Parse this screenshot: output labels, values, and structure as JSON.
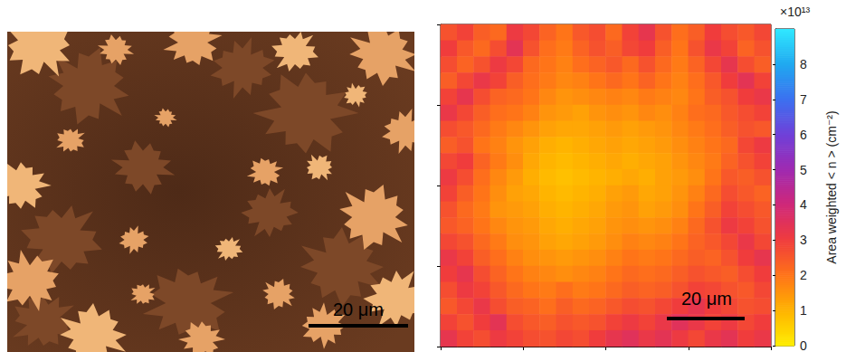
{
  "image": {
    "type": "micrograph",
    "scale_bar": "20 μm"
  },
  "chart_data": {
    "type": "heatmap",
    "tick_labels": false,
    "scale_bar": "20 μm",
    "colorbar": {
      "range": [
        0,
        9
      ],
      "ticks": [
        0,
        1,
        2,
        3,
        4,
        5,
        6,
        7,
        8
      ],
      "multiplier": "×10¹³",
      "title": "Area weighted < n > (cm⁻²)"
    },
    "cells": [
      [
        2.6,
        2.9,
        2.4,
        2.2,
        3.1,
        2.8,
        2.3,
        2.0,
        2.5,
        2.7,
        2.2,
        2.9,
        3.3,
        2.6,
        2.1,
        2.4,
        3.0,
        2.7,
        2.5,
        2.8
      ],
      [
        3.0,
        2.5,
        2.2,
        2.7,
        3.4,
        2.6,
        2.1,
        1.9,
        2.3,
        2.6,
        2.4,
        2.8,
        3.0,
        2.4,
        2.0,
        2.6,
        3.2,
        2.9,
        2.3,
        2.6
      ],
      [
        2.7,
        2.3,
        2.6,
        3.1,
        2.8,
        2.2,
        2.0,
        1.8,
        2.1,
        2.3,
        2.5,
        2.2,
        2.6,
        2.2,
        1.9,
        2.3,
        2.8,
        3.3,
        2.7,
        2.4
      ],
      [
        2.4,
        2.8,
        3.2,
        2.9,
        2.4,
        2.1,
        1.9,
        1.7,
        1.8,
        2.0,
        2.2,
        2.0,
        2.3,
        2.0,
        1.8,
        2.1,
        2.5,
        3.0,
        3.4,
        2.9
      ],
      [
        2.9,
        3.3,
        2.7,
        2.3,
        2.2,
        2.0,
        1.7,
        1.5,
        1.6,
        1.7,
        1.8,
        1.7,
        1.9,
        1.8,
        1.7,
        2.0,
        2.4,
        2.6,
        3.0,
        3.2
      ],
      [
        3.2,
        2.8,
        2.4,
        2.1,
        2.0,
        1.8,
        1.5,
        1.4,
        1.3,
        1.5,
        1.6,
        1.5,
        1.7,
        1.6,
        1.8,
        2.1,
        2.2,
        2.5,
        2.7,
        2.9
      ],
      [
        2.7,
        2.5,
        2.2,
        1.9,
        1.7,
        1.5,
        1.3,
        1.2,
        1.2,
        1.3,
        1.4,
        1.3,
        1.4,
        1.5,
        1.7,
        1.9,
        2.1,
        2.4,
        2.6,
        2.5
      ],
      [
        2.4,
        2.6,
        2.0,
        1.8,
        1.5,
        1.3,
        1.1,
        1.0,
        1.1,
        1.2,
        1.3,
        1.2,
        1.3,
        1.4,
        1.6,
        1.8,
        2.0,
        2.2,
        2.8,
        3.1
      ],
      [
        2.8,
        3.0,
        2.3,
        1.9,
        1.6,
        1.2,
        1.0,
        0.9,
        1.0,
        1.1,
        1.2,
        1.1,
        1.2,
        1.3,
        1.5,
        1.7,
        1.9,
        2.3,
        2.6,
        2.9
      ],
      [
        3.1,
        2.7,
        2.1,
        1.7,
        1.4,
        1.1,
        0.9,
        0.8,
        0.9,
        1.0,
        1.1,
        1.2,
        1.1,
        1.3,
        1.4,
        1.6,
        2.0,
        2.5,
        2.4,
        2.6
      ],
      [
        2.9,
        2.4,
        2.0,
        1.6,
        1.3,
        1.2,
        1.0,
        0.9,
        1.0,
        1.1,
        1.3,
        1.4,
        1.2,
        1.3,
        1.5,
        1.8,
        2.2,
        2.7,
        2.5,
        2.3
      ],
      [
        2.6,
        2.2,
        1.9,
        1.5,
        1.4,
        1.3,
        1.1,
        1.0,
        1.1,
        1.2,
        1.4,
        1.5,
        1.3,
        1.4,
        1.6,
        2.0,
        2.4,
        2.9,
        2.7,
        2.5
      ],
      [
        2.5,
        2.3,
        2.0,
        1.7,
        1.5,
        1.4,
        1.2,
        1.1,
        1.2,
        1.3,
        1.5,
        1.6,
        1.5,
        1.6,
        1.8,
        2.2,
        2.6,
        3.1,
        2.9,
        2.6
      ],
      [
        2.8,
        2.6,
        2.2,
        1.9,
        1.6,
        1.5,
        1.3,
        1.2,
        1.3,
        1.4,
        1.6,
        1.8,
        1.7,
        1.8,
        2.0,
        2.3,
        2.5,
        2.8,
        3.2,
        2.8
      ],
      [
        3.2,
        2.9,
        2.4,
        2.1,
        1.8,
        1.6,
        1.5,
        1.4,
        1.5,
        1.6,
        1.8,
        2.0,
        1.9,
        2.0,
        2.2,
        2.4,
        2.3,
        2.6,
        3.0,
        3.3
      ],
      [
        3.0,
        3.3,
        2.7,
        2.3,
        2.0,
        1.8,
        1.7,
        1.6,
        1.7,
        1.8,
        2.0,
        2.2,
        2.1,
        2.2,
        2.4,
        2.6,
        2.5,
        2.4,
        2.7,
        3.0
      ],
      [
        2.7,
        3.1,
        2.9,
        2.5,
        2.2,
        2.0,
        1.9,
        2.1,
        1.9,
        2.0,
        2.2,
        2.4,
        2.3,
        2.4,
        2.6,
        2.9,
        2.8,
        2.6,
        2.5,
        2.8
      ],
      [
        2.5,
        2.8,
        3.2,
        2.7,
        2.4,
        2.3,
        2.1,
        2.4,
        2.2,
        2.3,
        2.5,
        2.7,
        2.6,
        2.8,
        3.0,
        3.3,
        3.0,
        2.8,
        2.6,
        2.7
      ],
      [
        2.9,
        2.6,
        3.0,
        3.4,
        2.7,
        2.5,
        2.4,
        2.6,
        2.5,
        2.6,
        2.9,
        3.1,
        2.9,
        3.2,
        3.5,
        3.2,
        2.9,
        3.1,
        2.8,
        3.0
      ],
      [
        3.3,
        2.9,
        2.7,
        3.1,
        2.9,
        2.7,
        2.6,
        2.8,
        2.7,
        3.0,
        3.3,
        3.5,
        3.2,
        3.4,
        3.1,
        2.8,
        3.2,
        3.4,
        3.0,
        3.2
      ]
    ]
  }
}
